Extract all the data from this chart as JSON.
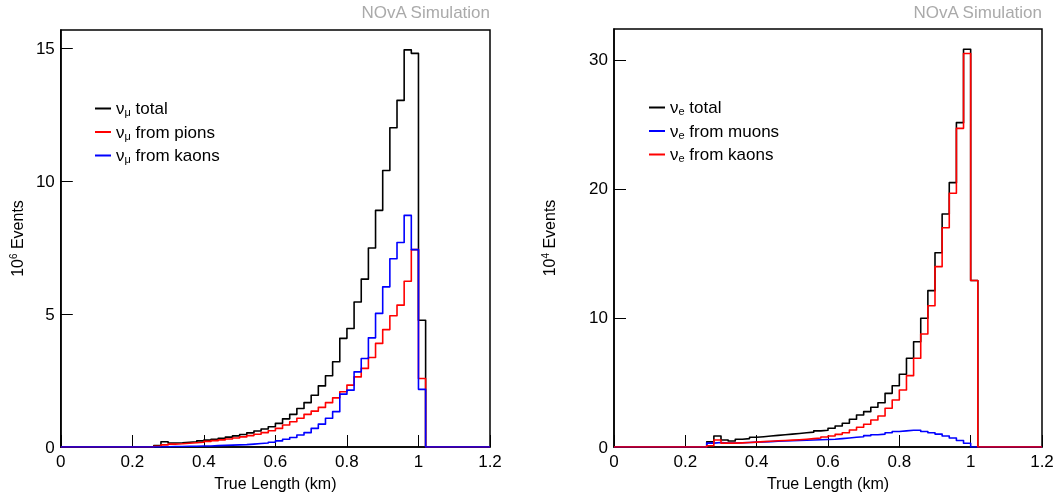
{
  "chart_data": [
    {
      "type": "histogram",
      "xlabel": "True Length (km)",
      "ylabel": "10$^{6}$ Events",
      "annotations": [
        "NOvA Simulation"
      ],
      "bins": [
        0,
        0.02,
        0.04,
        0.06,
        0.08,
        0.1,
        0.12,
        0.14,
        0.16,
        0.18,
        0.2,
        0.22,
        0.24,
        0.26,
        0.28,
        0.3,
        0.32,
        0.34,
        0.36,
        0.38,
        0.4,
        0.42,
        0.44,
        0.46,
        0.48,
        0.5,
        0.52,
        0.54,
        0.56,
        0.58,
        0.6,
        0.62,
        0.64,
        0.66,
        0.68,
        0.7,
        0.72,
        0.74,
        0.76,
        0.78,
        0.8,
        0.82,
        0.84,
        0.86,
        0.88,
        0.9,
        0.92,
        0.94,
        0.96,
        0.98,
        1,
        1.02,
        1.04,
        1.06,
        1.08,
        1.1,
        1.12,
        1.14,
        1.16,
        1.18,
        1.2
      ],
      "series": [
        {
          "name": "ν$_{μ}$ total",
          "color": "#000000",
          "values": [
            0,
            0,
            0,
            0,
            0,
            0,
            0,
            0,
            0,
            0,
            0,
            0,
            0,
            0.05,
            0.2,
            0.15,
            0.16,
            0.18,
            0.2,
            0.23,
            0.26,
            0.29,
            0.33,
            0.37,
            0.42,
            0.47,
            0.53,
            0.6,
            0.68,
            0.76,
            0.89,
            1.06,
            1.23,
            1.45,
            1.67,
            1.95,
            2.3,
            2.68,
            3.21,
            4.09,
            4.46,
            5.46,
            6.32,
            7.49,
            8.91,
            10.41,
            12.02,
            13.05,
            14.95,
            14.82,
            4.77,
            0,
            0,
            0,
            0,
            0,
            0,
            0,
            0,
            0
          ]
        },
        {
          "name": "ν$_{μ}$ from pions",
          "color": "#ff0000",
          "values": [
            0,
            0,
            0,
            0,
            0,
            0,
            0,
            0,
            0,
            0,
            0,
            0,
            0,
            0.03,
            0.08,
            0.11,
            0.12,
            0.14,
            0.16,
            0.18,
            0.21,
            0.24,
            0.27,
            0.3,
            0.34,
            0.38,
            0.43,
            0.48,
            0.54,
            0.61,
            0.7,
            0.83,
            0.95,
            1.08,
            1.23,
            1.35,
            1.49,
            1.67,
            1.85,
            2.08,
            2.33,
            2.64,
            2.96,
            3.37,
            3.9,
            4.42,
            4.94,
            5.34,
            6.24,
            7.43,
            2.58,
            0,
            0,
            0,
            0,
            0,
            0,
            0,
            0,
            0
          ]
        },
        {
          "name": "ν$_{μ}$ from kaons",
          "color": "#0000ff",
          "values": [
            0,
            0,
            0,
            0,
            0,
            0,
            0,
            0,
            0,
            0,
            0,
            0,
            0,
            0,
            0.01,
            0.02,
            0.02,
            0.03,
            0.03,
            0.04,
            0.04,
            0.05,
            0.06,
            0.07,
            0.08,
            0.09,
            0.11,
            0.13,
            0.15,
            0.18,
            0.23,
            0.29,
            0.36,
            0.45,
            0.54,
            0.7,
            0.86,
            1.08,
            1.33,
            1.99,
            2.14,
            2.83,
            3.33,
            4.11,
            5.03,
            6.03,
            7.09,
            7.7,
            8.72,
            7.43,
            2.17,
            0,
            0,
            0,
            0,
            0,
            0,
            0,
            0,
            0
          ]
        }
      ],
      "xlim": [
        0,
        1.2
      ],
      "xticks": [
        0,
        0.2,
        0.4,
        0.6,
        0.8,
        1,
        1.2
      ],
      "ylim": [
        0,
        15.7
      ],
      "yticks": [
        0,
        5,
        10,
        15
      ],
      "legend": "top left",
      "grid": false,
      "marker": "none",
      "line_style": "solid"
    },
    {
      "type": "histogram",
      "xlabel": "True Length (km)",
      "ylabel": "10$^{4}$ Events",
      "annotations": [
        "NOvA Simulation"
      ],
      "bins": [
        0,
        0.02,
        0.04,
        0.06,
        0.08,
        0.1,
        0.12,
        0.14,
        0.16,
        0.18,
        0.2,
        0.22,
        0.24,
        0.26,
        0.28,
        0.3,
        0.32,
        0.34,
        0.36,
        0.38,
        0.4,
        0.42,
        0.44,
        0.46,
        0.48,
        0.5,
        0.52,
        0.54,
        0.56,
        0.58,
        0.6,
        0.62,
        0.64,
        0.66,
        0.68,
        0.7,
        0.72,
        0.74,
        0.76,
        0.78,
        0.8,
        0.82,
        0.84,
        0.86,
        0.88,
        0.9,
        0.92,
        0.94,
        0.96,
        0.98,
        1,
        1.02,
        1.04,
        1.06,
        1.08,
        1.1,
        1.12,
        1.14,
        1.16,
        1.18,
        1.2
      ],
      "series": [
        {
          "name": "ν$_{e}$ total",
          "color": "#000000",
          "values": [
            0,
            0,
            0,
            0,
            0,
            0,
            0,
            0,
            0,
            0,
            0,
            0,
            0,
            0.4,
            0.85,
            0.54,
            0.47,
            0.6,
            0.65,
            0.75,
            0.8,
            0.85,
            0.9,
            0.95,
            1,
            1.05,
            1.1,
            1.15,
            1.25,
            1.3,
            1.45,
            1.63,
            1.84,
            2.15,
            2.48,
            2.74,
            3.08,
            3.43,
            4.16,
            4.75,
            5.64,
            6.88,
            8.16,
            9.98,
            12.12,
            15.06,
            18.06,
            20.49,
            25.14,
            30.83,
            12.9,
            0,
            0,
            0,
            0,
            0,
            0,
            0,
            0,
            0
          ]
        },
        {
          "name": "ν$_{e}$ from muons",
          "color": "#0000ff",
          "values": [
            0,
            0,
            0,
            0,
            0,
            0,
            0,
            0,
            0,
            0,
            0,
            0,
            0,
            0.3,
            0.35,
            0.3,
            0.3,
            0.33,
            0.35,
            0.38,
            0.4,
            0.42,
            0.44,
            0.46,
            0.48,
            0.5,
            0.52,
            0.54,
            0.56,
            0.58,
            0.6,
            0.65,
            0.7,
            0.75,
            0.8,
            0.88,
            0.95,
            1,
            1.1,
            1.2,
            1.25,
            1.3,
            1.3,
            1.2,
            1.1,
            1,
            0.85,
            0.7,
            0.5,
            0.29,
            0,
            0,
            0,
            0,
            0,
            0,
            0,
            0,
            0,
            0
          ]
        },
        {
          "name": "ν$_{e}$ from kaons",
          "color": "#ff0000",
          "values": [
            0,
            0,
            0,
            0,
            0,
            0,
            0,
            0,
            0,
            0,
            0,
            0,
            0,
            0.1,
            0.54,
            0.3,
            0.3,
            0.32,
            0.35,
            0.38,
            0.42,
            0.45,
            0.48,
            0.5,
            0.53,
            0.56,
            0.6,
            0.65,
            0.7,
            0.77,
            0.85,
            0.98,
            1.11,
            1.32,
            1.53,
            1.76,
            2.09,
            2.4,
            3,
            3.64,
            4.42,
            5.53,
            6.88,
            8.76,
            10.95,
            13.98,
            17,
            19.67,
            24.7,
            30.5,
            12.9,
            0,
            0,
            0,
            0,
            0,
            0,
            0,
            0,
            0
          ]
        }
      ],
      "xlim": [
        0,
        1.2
      ],
      "xticks": [
        0,
        0.2,
        0.4,
        0.6,
        0.8,
        1,
        1.2
      ],
      "ylim": [
        0,
        32.4
      ],
      "yticks": [
        0,
        10,
        20,
        30
      ],
      "legend": "top left",
      "grid": false,
      "marker": "none",
      "line_style": "solid"
    }
  ]
}
